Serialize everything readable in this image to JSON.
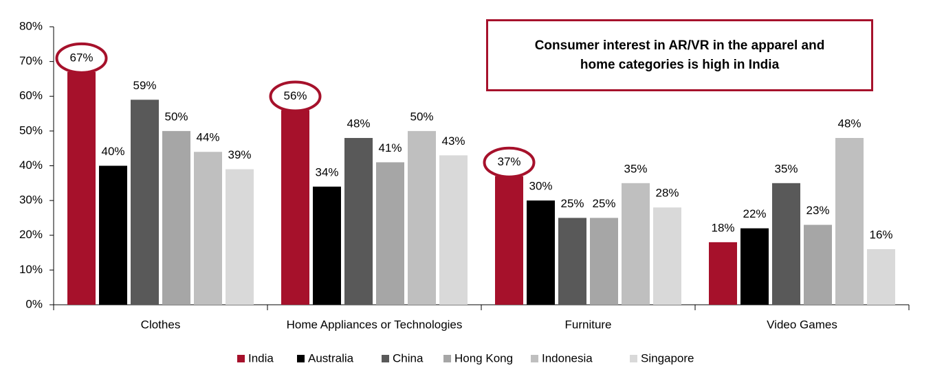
{
  "chart_data": {
    "type": "bar",
    "annotation": "Consumer interest in AR/VR in the apparel and home categories is high in India",
    "categories": [
      "Clothes",
      "Home Appliances or Technologies",
      "Furniture",
      "Video Games"
    ],
    "series": [
      {
        "name": "India",
        "color": "#a6112b",
        "values": [
          67,
          56,
          37,
          18
        ],
        "value_labels": [
          "67%",
          "56%",
          "37%",
          "18%"
        ]
      },
      {
        "name": "Australia",
        "color": "#000000",
        "values": [
          40,
          34,
          30,
          22
        ],
        "value_labels": [
          "40%",
          "34%",
          "30%",
          "22%"
        ]
      },
      {
        "name": "China",
        "color": "#595959",
        "values": [
          59,
          48,
          25,
          35
        ],
        "value_labels": [
          "59%",
          "48%",
          "25%",
          "35%"
        ]
      },
      {
        "name": "Hong Kong",
        "color": "#a6a6a6",
        "values": [
          50,
          41,
          25,
          23
        ],
        "value_labels": [
          "50%",
          "41%",
          "25%",
          "23%"
        ]
      },
      {
        "name": "Indonesia",
        "color": "#bfbfbf",
        "values": [
          44,
          50,
          35,
          48
        ],
        "value_labels": [
          "44%",
          "50%",
          "35%",
          "48%"
        ]
      },
      {
        "name": "Singapore",
        "color": "#d9d9d9",
        "values": [
          39,
          43,
          28,
          16
        ],
        "value_labels": [
          "39%",
          "43%",
          "28%",
          "16%"
        ]
      }
    ],
    "ylim": [
      0,
      80
    ],
    "yticks": [
      {
        "value": 0,
        "label": "0%"
      },
      {
        "value": 10,
        "label": "10%"
      },
      {
        "value": 20,
        "label": "20%"
      },
      {
        "value": 30,
        "label": "30%"
      },
      {
        "value": 40,
        "label": "40%"
      },
      {
        "value": 50,
        "label": "50%"
      },
      {
        "value": 60,
        "label": "60%"
      },
      {
        "value": 70,
        "label": "70%"
      },
      {
        "value": 80,
        "label": "80%"
      }
    ],
    "grid": false,
    "legend": "bottom"
  }
}
